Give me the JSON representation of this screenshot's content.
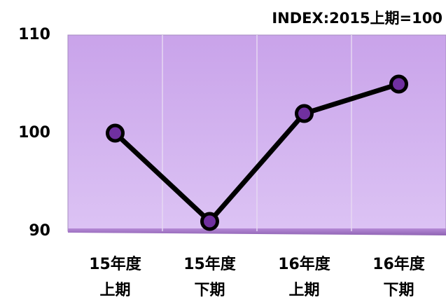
{
  "chart_data": {
    "type": "line",
    "subtitle": "INDEX:2015上期=100",
    "categories": [
      [
        "15年度",
        "上期"
      ],
      [
        "15年度",
        "下期"
      ],
      [
        "16年度",
        "上期"
      ],
      [
        "16年度",
        "下期"
      ]
    ],
    "series": [
      {
        "name": "INDEX",
        "color": "#000000",
        "marker_color": "#7030a0",
        "values": [
          100,
          91,
          102,
          105
        ]
      }
    ],
    "ylim": [
      90,
      110
    ],
    "yticks": [
      90,
      100,
      110
    ],
    "grid": true
  }
}
